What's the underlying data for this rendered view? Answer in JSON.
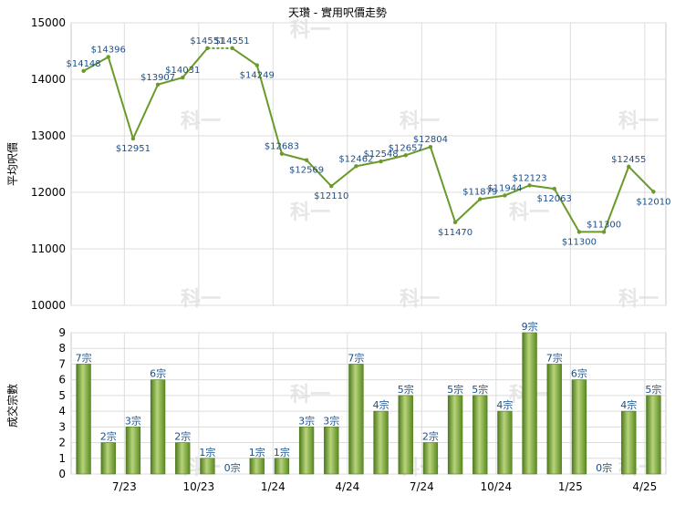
{
  "chart_data": [
    {
      "type": "line",
      "title": "天瓚 - 實用呎價走勢",
      "xlabel": "",
      "ylabel": "平均呎價",
      "ylim": [
        10000,
        15000
      ],
      "yticks": [
        10000,
        11000,
        12000,
        13000,
        14000,
        15000
      ],
      "grid": true,
      "color": "#6a9a2a",
      "label_color": "#1a4f8a",
      "label_prefix": "$",
      "values": [
        14148,
        14396,
        12951,
        13907,
        14031,
        14551,
        14551,
        14249,
        12683,
        12569,
        12110,
        12462,
        12548,
        12657,
        12804,
        11470,
        11879,
        11944,
        12123,
        12063,
        11300,
        11300,
        12455,
        12010
      ],
      "gaps_after": [
        5
      ]
    },
    {
      "type": "bar",
      "xlabel": "",
      "ylabel": "成交宗數",
      "ylim": [
        0,
        9
      ],
      "yticks": [
        0,
        1,
        2,
        3,
        4,
        5,
        6,
        7,
        8,
        9
      ],
      "grid": true,
      "color": "#7fa33a",
      "label_color": "#1a4f8a",
      "label_suffix": "宗",
      "values": [
        7,
        2,
        3,
        6,
        2,
        1,
        0,
        1,
        1,
        3,
        3,
        7,
        4,
        5,
        2,
        5,
        5,
        4,
        9,
        7,
        6,
        0,
        4,
        5
      ],
      "tick_labels": [
        "7/23",
        "10/23",
        "1/24",
        "4/24",
        "7/24",
        "10/24",
        "1/25",
        "4/25"
      ],
      "tick_after_index": [
        1,
        4,
        7,
        10,
        13,
        16,
        19,
        22
      ]
    }
  ],
  "watermark": "科一"
}
